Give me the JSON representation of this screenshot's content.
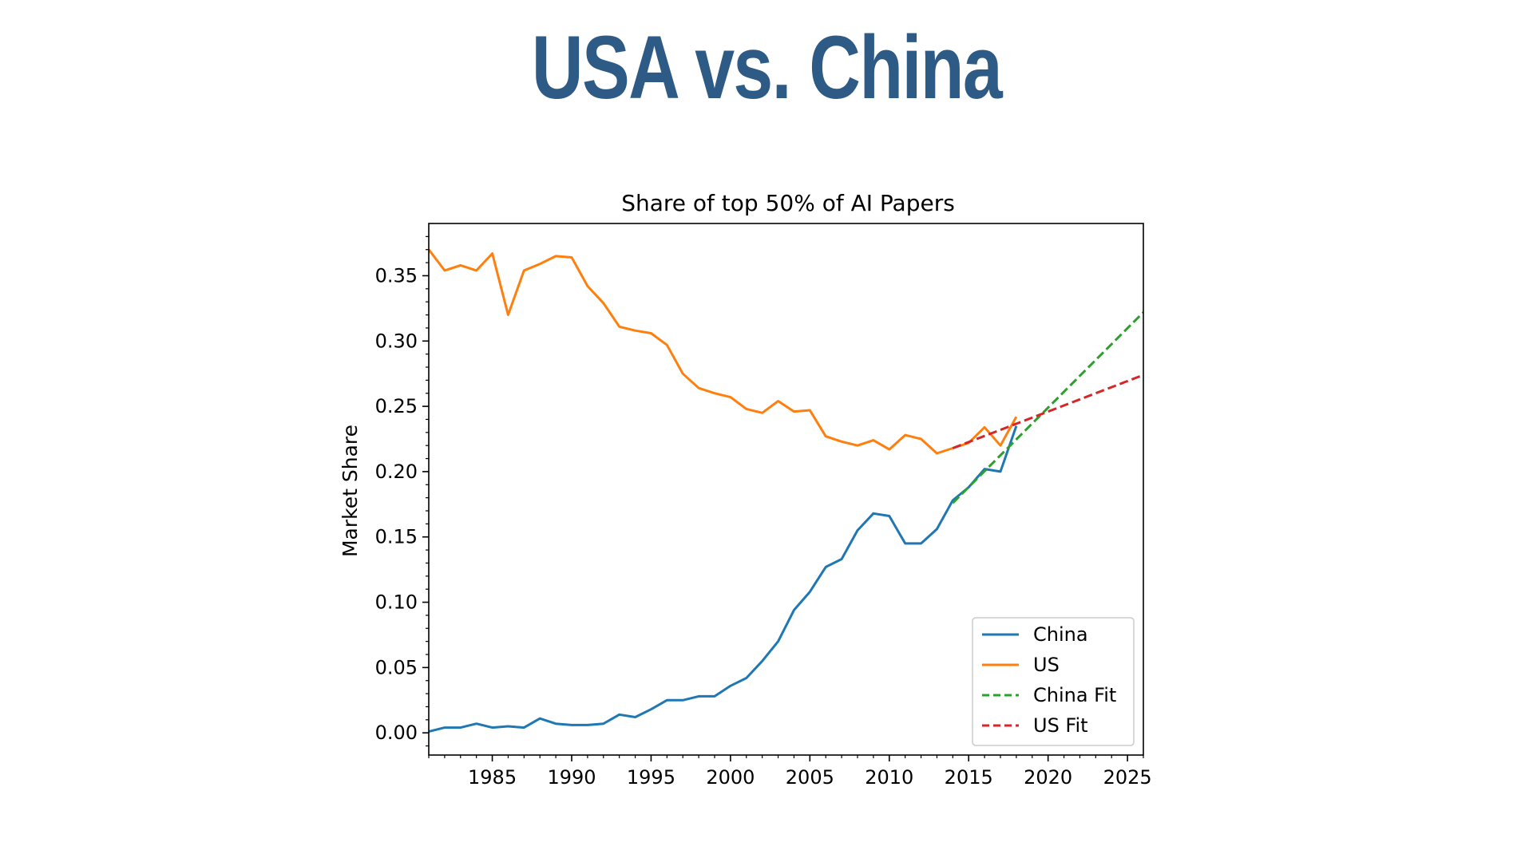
{
  "slide": {
    "title": "USA vs. China"
  },
  "chart_data": {
    "type": "line",
    "title": "Share of top 50% of AI Papers",
    "xlabel": "",
    "ylabel": "Market Share",
    "xlim": [
      1981,
      2026
    ],
    "ylim": [
      -0.017,
      0.39
    ],
    "xticks": [
      1985,
      1990,
      1995,
      2000,
      2005,
      2010,
      2015,
      2020,
      2025
    ],
    "xtick_labels": [
      "1985",
      "1990",
      "1995",
      "2000",
      "2005",
      "2010",
      "2015",
      "2020",
      "2025"
    ],
    "yticks": [
      0.0,
      0.05,
      0.1,
      0.15,
      0.2,
      0.25,
      0.3,
      0.35
    ],
    "ytick_labels": [
      "0.00",
      "0.05",
      "0.10",
      "0.15",
      "0.20",
      "0.25",
      "0.30",
      "0.35"
    ],
    "grid": false,
    "legend_position": "lower-right",
    "series": [
      {
        "name": "China",
        "color": "#1f77b4",
        "style": "solid",
        "x": [
          1981,
          1982,
          1983,
          1984,
          1985,
          1986,
          1987,
          1988,
          1989,
          1990,
          1991,
          1992,
          1993,
          1994,
          1995,
          1996,
          1997,
          1998,
          1999,
          2000,
          2001,
          2002,
          2003,
          2004,
          2005,
          2006,
          2007,
          2008,
          2009,
          2010,
          2011,
          2012,
          2013,
          2014,
          2015,
          2016,
          2017,
          2018
        ],
        "y": [
          0.001,
          0.004,
          0.004,
          0.007,
          0.004,
          0.005,
          0.004,
          0.011,
          0.007,
          0.006,
          0.006,
          0.007,
          0.014,
          0.012,
          0.018,
          0.025,
          0.025,
          0.028,
          0.028,
          0.036,
          0.042,
          0.055,
          0.07,
          0.094,
          0.108,
          0.127,
          0.133,
          0.155,
          0.168,
          0.166,
          0.145,
          0.145,
          0.156,
          0.178,
          0.188,
          0.202,
          0.2,
          0.235
        ]
      },
      {
        "name": "US",
        "color": "#ff7f0e",
        "style": "solid",
        "x": [
          1981,
          1982,
          1983,
          1984,
          1985,
          1986,
          1987,
          1988,
          1989,
          1990,
          1991,
          1992,
          1993,
          1994,
          1995,
          1996,
          1997,
          1998,
          1999,
          2000,
          2001,
          2002,
          2003,
          2004,
          2005,
          2006,
          2007,
          2008,
          2009,
          2010,
          2011,
          2012,
          2013,
          2014,
          2015,
          2016,
          2017,
          2018
        ],
        "y": [
          0.37,
          0.354,
          0.358,
          0.354,
          0.367,
          0.32,
          0.354,
          0.359,
          0.365,
          0.364,
          0.342,
          0.329,
          0.311,
          0.308,
          0.306,
          0.297,
          0.275,
          0.264,
          0.26,
          0.257,
          0.248,
          0.245,
          0.254,
          0.246,
          0.247,
          0.227,
          0.223,
          0.22,
          0.224,
          0.217,
          0.228,
          0.225,
          0.214,
          0.218,
          0.222,
          0.234,
          0.22,
          0.242
        ]
      },
      {
        "name": "China Fit",
        "color": "#2ca02c",
        "style": "dashed",
        "x": [
          2014,
          2026
        ],
        "y": [
          0.176,
          0.322
        ]
      },
      {
        "name": "US Fit",
        "color": "#d62728",
        "style": "dashed",
        "x": [
          2014,
          2026
        ],
        "y": [
          0.218,
          0.274
        ]
      }
    ]
  }
}
